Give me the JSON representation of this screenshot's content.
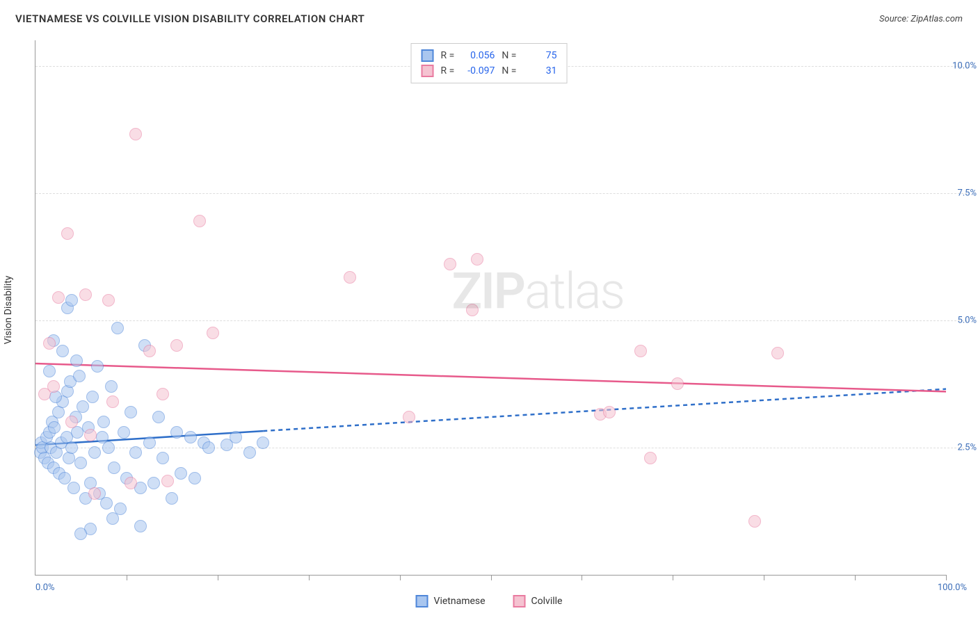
{
  "header": {
    "title": "VIETNAMESE VS COLVILLE VISION DISABILITY CORRELATION CHART",
    "source": "Source: ZipAtlas.com"
  },
  "ylabel": "Vision Disability",
  "watermark": {
    "bold": "ZIP",
    "light": "atlas"
  },
  "chart": {
    "type": "scatter",
    "xlim": [
      0,
      100
    ],
    "ylim": [
      0,
      10.5
    ],
    "x_min_label": "0.0%",
    "x_max_label": "100.0%",
    "y_ticks": [
      2.5,
      5.0,
      7.5,
      10.0
    ],
    "y_tick_labels": [
      "2.5%",
      "5.0%",
      "7.5%",
      "10.0%"
    ],
    "x_minor_ticks": [
      10,
      20,
      30,
      40,
      50,
      60,
      70,
      80,
      90,
      100
    ],
    "grid_color": "#dddddd",
    "background": "#ffffff",
    "marker_radius": 9,
    "marker_opacity": 0.55,
    "series": [
      {
        "name": "Vietnamese",
        "color_fill": "#a9c6ef",
        "color_stroke": "#4f87d9",
        "R": "0.056",
        "N": "75",
        "trend": {
          "y0": 2.55,
          "y1": 3.65,
          "solid_until_x": 25,
          "color": "#2f6fc9",
          "width": 2.5
        },
        "points": [
          [
            0.5,
            2.4
          ],
          [
            0.6,
            2.6
          ],
          [
            0.8,
            2.5
          ],
          [
            1.0,
            2.3
          ],
          [
            1.2,
            2.7
          ],
          [
            1.4,
            2.2
          ],
          [
            1.5,
            2.8
          ],
          [
            1.7,
            2.5
          ],
          [
            1.8,
            3.0
          ],
          [
            2.0,
            2.1
          ],
          [
            2.1,
            2.9
          ],
          [
            2.3,
            2.4
          ],
          [
            2.5,
            3.2
          ],
          [
            2.6,
            2.0
          ],
          [
            2.8,
            2.6
          ],
          [
            3.0,
            3.4
          ],
          [
            3.2,
            1.9
          ],
          [
            3.4,
            2.7
          ],
          [
            3.5,
            3.6
          ],
          [
            3.7,
            2.3
          ],
          [
            3.8,
            3.8
          ],
          [
            4.0,
            2.5
          ],
          [
            4.2,
            1.7
          ],
          [
            4.4,
            3.1
          ],
          [
            4.6,
            2.8
          ],
          [
            4.8,
            3.9
          ],
          [
            5.0,
            2.2
          ],
          [
            5.2,
            3.3
          ],
          [
            5.5,
            1.5
          ],
          [
            5.8,
            2.9
          ],
          [
            6.0,
            1.8
          ],
          [
            6.3,
            3.5
          ],
          [
            6.5,
            2.4
          ],
          [
            6.8,
            4.1
          ],
          [
            7.0,
            1.6
          ],
          [
            7.3,
            2.7
          ],
          [
            7.5,
            3.0
          ],
          [
            7.8,
            1.4
          ],
          [
            8.0,
            2.5
          ],
          [
            8.3,
            3.7
          ],
          [
            8.6,
            2.1
          ],
          [
            9.0,
            4.85
          ],
          [
            9.3,
            1.3
          ],
          [
            9.7,
            2.8
          ],
          [
            10.0,
            1.9
          ],
          [
            10.5,
            3.2
          ],
          [
            11.0,
            2.4
          ],
          [
            11.5,
            1.7
          ],
          [
            12.0,
            4.5
          ],
          [
            12.5,
            2.6
          ],
          [
            13.0,
            1.8
          ],
          [
            13.5,
            3.1
          ],
          [
            14.0,
            2.3
          ],
          [
            15.0,
            1.5
          ],
          [
            15.5,
            2.8
          ],
          [
            16.0,
            2.0
          ],
          [
            17.0,
            2.7
          ],
          [
            17.5,
            1.9
          ],
          [
            18.5,
            2.6
          ],
          [
            19.0,
            2.5
          ],
          [
            6.0,
            0.9
          ],
          [
            8.5,
            1.1
          ],
          [
            11.5,
            0.95
          ],
          [
            5.0,
            0.8
          ],
          [
            3.5,
            5.25
          ],
          [
            2.0,
            4.6
          ],
          [
            4.5,
            4.2
          ],
          [
            21.0,
            2.55
          ],
          [
            22.0,
            2.7
          ],
          [
            23.5,
            2.4
          ],
          [
            25.0,
            2.6
          ],
          [
            4.0,
            5.4
          ],
          [
            3.0,
            4.4
          ],
          [
            2.2,
            3.5
          ],
          [
            1.5,
            4.0
          ]
        ]
      },
      {
        "name": "Colville",
        "color_fill": "#f5c3d1",
        "color_stroke": "#e97ba0",
        "R": "-0.097",
        "N": "31",
        "trend": {
          "y0": 4.15,
          "y1": 3.6,
          "solid_until_x": 100,
          "color": "#e75a8b",
          "width": 2.5
        },
        "points": [
          [
            1.5,
            4.55
          ],
          [
            2.0,
            3.7
          ],
          [
            3.5,
            6.7
          ],
          [
            4.0,
            3.0
          ],
          [
            5.5,
            5.5
          ],
          [
            6.0,
            2.75
          ],
          [
            8.0,
            5.4
          ],
          [
            8.5,
            3.4
          ],
          [
            10.5,
            1.8
          ],
          [
            11.0,
            8.65
          ],
          [
            12.5,
            4.4
          ],
          [
            14.0,
            3.55
          ],
          [
            15.5,
            4.5
          ],
          [
            18.0,
            6.95
          ],
          [
            19.5,
            4.75
          ],
          [
            14.5,
            1.85
          ],
          [
            34.5,
            5.85
          ],
          [
            41.0,
            3.1
          ],
          [
            45.5,
            6.1
          ],
          [
            48.0,
            5.2
          ],
          [
            48.5,
            6.2
          ],
          [
            62.0,
            3.15
          ],
          [
            63.0,
            3.2
          ],
          [
            66.5,
            4.4
          ],
          [
            67.5,
            2.3
          ],
          [
            70.5,
            3.75
          ],
          [
            79.0,
            1.05
          ],
          [
            81.5,
            4.35
          ],
          [
            6.5,
            1.6
          ],
          [
            2.5,
            5.45
          ],
          [
            1.0,
            3.55
          ]
        ]
      }
    ]
  },
  "legend_top": {
    "r_label": "R =",
    "n_label": "N ="
  },
  "legend_bottom": [
    {
      "label": "Vietnamese",
      "fill": "#a9c6ef",
      "stroke": "#4f87d9"
    },
    {
      "label": "Colville",
      "fill": "#f5c3d1",
      "stroke": "#e97ba0"
    }
  ]
}
